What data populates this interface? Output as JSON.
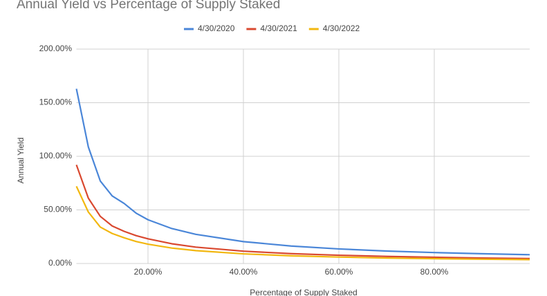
{
  "chart_data": {
    "type": "line",
    "title": "Annual Yield vs Percentage of Supply Staked",
    "x_label": "Percentage of Supply Staked",
    "y_label": "Annual Yield",
    "x": [
      5,
      7.5,
      10,
      12.5,
      15,
      17.5,
      20,
      25,
      30,
      40,
      50,
      60,
      70,
      80,
      90,
      100
    ],
    "series": [
      {
        "name": "4/30/2020",
        "color": "#4a86d8",
        "values": [
          163,
          108.7,
          77,
          63,
          56,
          47,
          40.8,
          32.6,
          27.2,
          20.4,
          16.3,
          13.6,
          11.6,
          10.2,
          9.1,
          8.2
        ]
      },
      {
        "name": "4/30/2021",
        "color": "#d9482f",
        "values": [
          92,
          61,
          44,
          35,
          30,
          26,
          23,
          18.4,
          15.3,
          11.5,
          9.2,
          7.7,
          6.6,
          5.8,
          5.1,
          4.6
        ]
      },
      {
        "name": "4/30/2022",
        "color": "#f2b70f",
        "values": [
          72,
          48,
          34,
          28,
          24,
          20.5,
          18,
          14.4,
          12,
          9,
          7.2,
          6,
          5.1,
          4.5,
          4,
          3.6
        ]
      }
    ],
    "xlim": [
      5,
      100
    ],
    "ylim": [
      0,
      200
    ],
    "xticks": [
      {
        "value": 20,
        "label": "20.00%"
      },
      {
        "value": 40,
        "label": "40.00%"
      },
      {
        "value": 60,
        "label": "60.00%"
      },
      {
        "value": 80,
        "label": "80.00%"
      }
    ],
    "yticks": [
      {
        "value": 0,
        "label": "0.00%"
      },
      {
        "value": 50,
        "label": "50.00%"
      },
      {
        "value": 100,
        "label": "100.00%"
      },
      {
        "value": 150,
        "label": "150.00%"
      },
      {
        "value": 200,
        "label": "200.00%"
      }
    ],
    "grid": true,
    "legend": "top"
  }
}
